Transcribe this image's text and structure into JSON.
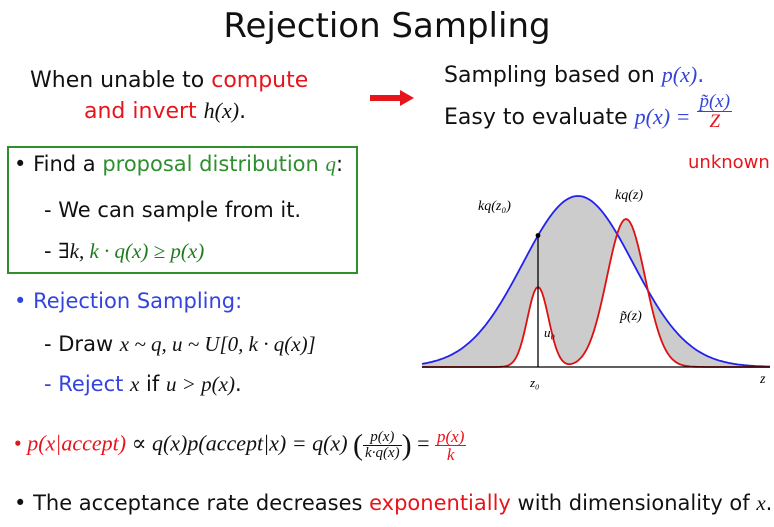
{
  "title": "Rejection Sampling",
  "condition": {
    "prefix": "When unable to ",
    "compute": "compute",
    "and_invert": "and invert ",
    "h_func": "h(x)",
    "period": "."
  },
  "sampling": {
    "line1_prefix": "Sampling based on ",
    "line1_math": "p(x)",
    "line1_period": ".",
    "line2_prefix": "Easy to evaluate ",
    "line2_lhs": "p(x) =",
    "frac_num": "p̃(x)",
    "frac_den": "Z",
    "unknown": "unknown"
  },
  "proposal": {
    "bullet1_prefix": "Find a ",
    "bullet1_highlight": "proposal distribution ",
    "bullet1_q": "q",
    "bullet1_suffix": ":",
    "sub1": "We can sample from it.",
    "sub2_prefix": "∃k, ",
    "sub2_math": "k · q(x) ≥ p(x)"
  },
  "rejection": {
    "bullet2": "Rejection Sampling:",
    "draw_prefix": "Draw ",
    "draw_math": "x ~ q, u ~ U[0, k · q(x)]",
    "reject_word": "Reject ",
    "reject_x": "x",
    "reject_if": " if ",
    "reject_cond": "u > p(x)",
    "reject_period": "."
  },
  "formula": {
    "lhs": "p(x|accept)",
    "mid": " ∝ q(x)p(accept|x) = q(x) ",
    "frac1_num": "p(x)",
    "frac1_den": "k·q(x)",
    "eq": " = ",
    "frac2_num": "p(x)",
    "frac2_den": "k"
  },
  "acceptance": {
    "prefix": "The acceptance rate decreases ",
    "highlight": "exponentially",
    "suffix": " with dimensionality of ",
    "x": "x",
    "period": "."
  },
  "diagram": {
    "label_kqz0": "kq(z₀)",
    "label_kqz": "kq(z)",
    "label_ptilde": "p̃(z)",
    "label_u0": "u₀",
    "label_z0": "z₀",
    "label_z": "z",
    "colors": {
      "envelope": "#2222ee",
      "target": "#dd1111",
      "fill": "#cccccc"
    }
  },
  "colors": {
    "red": "#e8141c",
    "blue": "#3344dd",
    "green": "#2f8f2f"
  }
}
